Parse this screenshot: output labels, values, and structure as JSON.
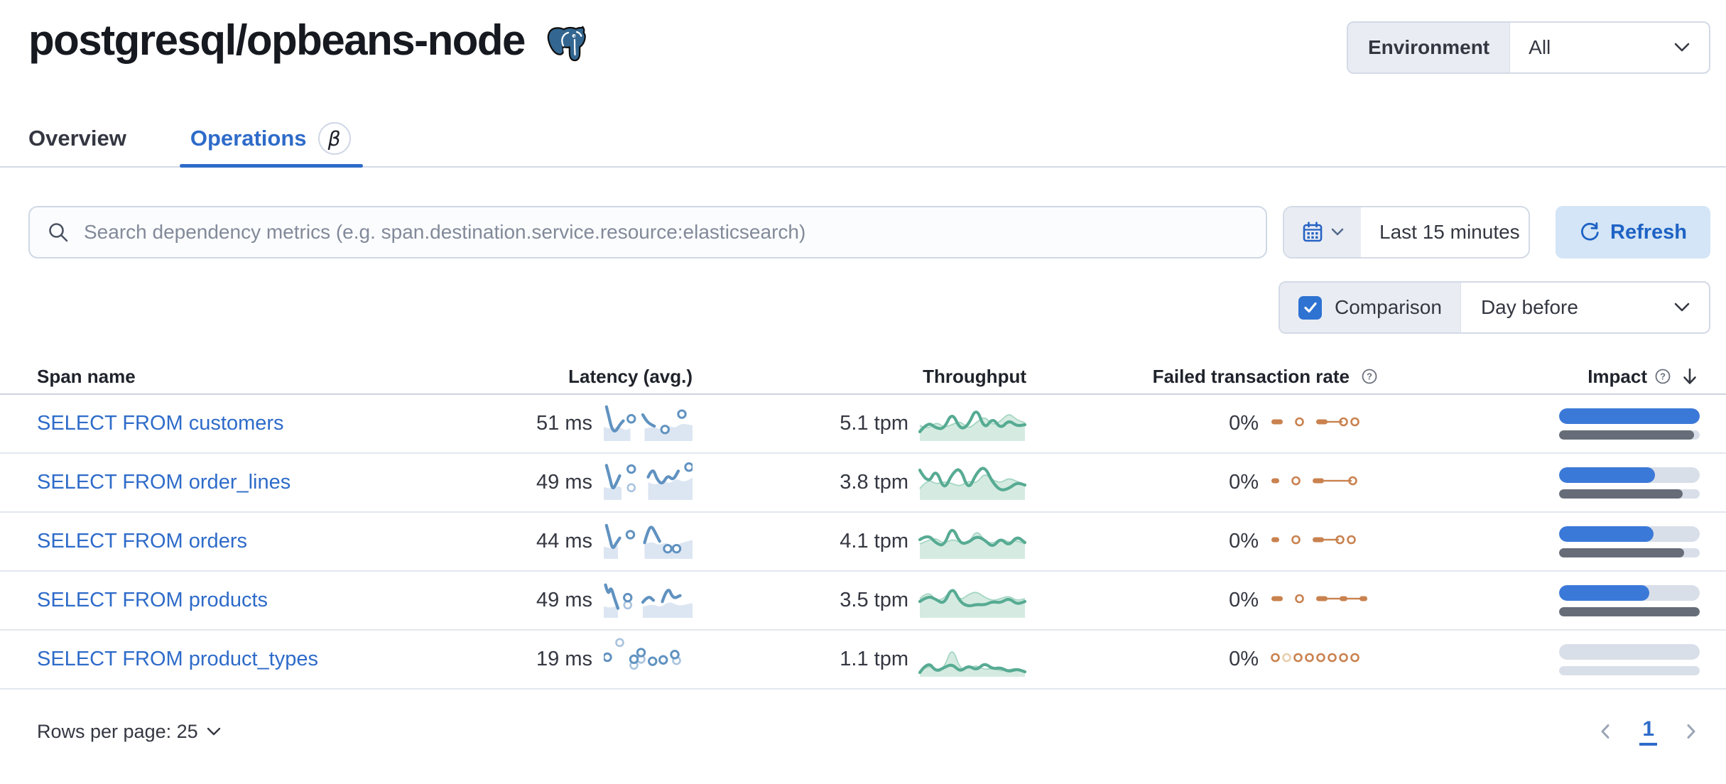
{
  "header": {
    "title": "postgresql/opbeans-node",
    "environment_label": "Environment",
    "environment_value": "All"
  },
  "tabs": [
    {
      "label": "Overview"
    },
    {
      "label": "Operations",
      "badge": "β"
    }
  ],
  "toolbar": {
    "search_placeholder": "Search dependency metrics (e.g. span.destination.service.resource:elasticsearch)",
    "time_range": "Last 15 minutes",
    "refresh_label": "Refresh",
    "comparison_label": "Comparison",
    "comparison_checked": true,
    "comparison_value": "Day before"
  },
  "table": {
    "columns": [
      "Span name",
      "Latency (avg.)",
      "Throughput",
      "Failed transaction rate",
      "Impact"
    ],
    "rows": [
      {
        "name": "SELECT FROM customers",
        "latency": "51 ms",
        "throughput": "5.1 tpm",
        "failed_rate": "0%",
        "impact": {
          "current": 100,
          "previous": 96
        },
        "latency_spark": {
          "areas": [
            [
              [
                0,
                0.66
              ],
              [
                8,
                0.74
              ],
              [
                16,
                0.62
              ],
              [
                24,
                0.78
              ],
              [
                30,
                0.7
              ]
            ],
            [
              [
                46,
                0.72
              ],
              [
                56,
                0.64
              ],
              [
                64,
                0.76
              ],
              [
                72,
                0.62
              ],
              [
                80,
                0.7
              ],
              [
                88,
                0.55
              ],
              [
                100,
                0.62
              ]
            ]
          ],
          "lines": [
            [
              [
                3,
                0.06
              ],
              [
                6,
                0.38
              ],
              [
                9,
                0.72
              ],
              [
                13,
                0.82
              ],
              [
                18,
                0.6
              ],
              [
                22,
                0.48
              ]
            ],
            [
              [
                44,
                0.3
              ],
              [
                47,
                0.44
              ],
              [
                51,
                0.56
              ],
              [
                57,
                0.64
              ]
            ]
          ],
          "dots": [
            [
              31,
              0.42
            ],
            [
              69,
              0.74
            ],
            [
              88,
              0.28
            ]
          ],
          "light_dots": []
        },
        "throughput_spark": {
          "line": [
            0.78,
            0.5,
            0.68,
            0.7,
            0.22,
            0.72,
            0.6,
            0.08,
            0.72,
            0.38,
            0.7,
            0.45,
            0.62,
            0.58
          ],
          "area": [
            0.6,
            0.72,
            0.5,
            0.66,
            0.58,
            0.48,
            0.7,
            0.52,
            0.34,
            0.6,
            0.48,
            0.25,
            0.45,
            0.52
          ]
        },
        "failed_spark": [
          "dash",
          "sp",
          "ring",
          "sp",
          "dash",
          "conn",
          "ring",
          "ring"
        ]
      },
      {
        "name": "SELECT FROM order_lines",
        "latency": "49 ms",
        "throughput": "3.8 tpm",
        "failed_rate": "0%",
        "impact": {
          "current": 68,
          "previous": 88
        },
        "latency_spark": {
          "areas": [
            [
              [
                0,
                0.7
              ],
              [
                8,
                0.76
              ],
              [
                16,
                0.66
              ],
              [
                20,
                0.72
              ]
            ],
            [
              [
                50,
                0.55
              ],
              [
                58,
                0.66
              ],
              [
                66,
                0.5
              ],
              [
                74,
                0.6
              ],
              [
                82,
                0.44
              ],
              [
                90,
                0.56
              ],
              [
                100,
                0.42
              ]
            ]
          ],
          "lines": [
            [
              [
                3,
                0.05
              ],
              [
                7,
                0.45
              ],
              [
                10,
                0.78
              ],
              [
                14,
                0.6
              ],
              [
                18,
                0.36
              ]
            ],
            [
              [
                50,
                0.4
              ],
              [
                55,
                0.1
              ],
              [
                60,
                0.48
              ],
              [
                66,
                0.62
              ],
              [
                72,
                0.34
              ],
              [
                78,
                0.5
              ],
              [
                84,
                0.22
              ]
            ]
          ],
          "dots": [
            [
              31,
              0.16
            ],
            [
              96,
              0.1
            ]
          ],
          "light_dots": [
            [
              31,
              0.72
            ]
          ]
        },
        "throughput_spark": {
          "line": [
            0.2,
            0.62,
            0.15,
            0.78,
            0.3,
            0.12,
            0.78,
            0.28,
            0.08,
            0.55,
            0.78,
            0.72,
            0.55,
            0.62
          ],
          "area": [
            0.72,
            0.45,
            0.6,
            0.52,
            0.58,
            0.66,
            0.5,
            0.58,
            0.28,
            0.48,
            0.56,
            0.42,
            0.52,
            0.6
          ]
        },
        "failed_spark": [
          "dashsm",
          "sp",
          "ring",
          "sp",
          "dash",
          "connlong",
          "ring"
        ]
      },
      {
        "name": "SELECT FROM orders",
        "latency": "44 ms",
        "throughput": "4.1 tpm",
        "failed_rate": "0%",
        "impact": {
          "current": 67,
          "previous": 89
        },
        "latency_spark": {
          "areas": [
            [
              [
                0,
                0.72
              ],
              [
                8,
                0.78
              ],
              [
                16,
                0.68
              ]
            ],
            [
              [
                46,
                0.64
              ],
              [
                54,
                0.56
              ],
              [
                62,
                0.68
              ],
              [
                70,
                0.58
              ],
              [
                78,
                0.72
              ],
              [
                88,
                0.6
              ],
              [
                100,
                0.52
              ]
            ]
          ],
          "lines": [
            [
              [
                3,
                0.08
              ],
              [
                7,
                0.5
              ],
              [
                10,
                0.8
              ],
              [
                14,
                0.62
              ],
              [
                18,
                0.46
              ]
            ],
            [
              [
                46,
                0.6
              ],
              [
                50,
                0.22
              ],
              [
                54,
                0.1
              ],
              [
                58,
                0.3
              ],
              [
                63,
                0.56
              ]
            ]
          ],
          "dots": [
            [
              30,
              0.36
            ],
            [
              72,
              0.78
            ],
            [
              82,
              0.78
            ]
          ],
          "light_dots": []
        },
        "throughput_spark": {
          "line": [
            0.5,
            0.35,
            0.6,
            0.68,
            0.1,
            0.62,
            0.58,
            0.4,
            0.5,
            0.72,
            0.45,
            0.68,
            0.4,
            0.58
          ],
          "area": [
            0.62,
            0.52,
            0.45,
            0.62,
            0.48,
            0.58,
            0.62,
            0.22,
            0.52,
            0.62,
            0.45,
            0.58,
            0.52,
            0.62
          ]
        },
        "failed_spark": [
          "dashsm",
          "sp",
          "ring",
          "sp",
          "dash",
          "conn",
          "ring",
          "ring"
        ]
      },
      {
        "name": "SELECT FROM products",
        "latency": "49 ms",
        "throughput": "3.5 tpm",
        "failed_rate": "0%",
        "impact": {
          "current": 64,
          "previous": 100
        },
        "latency_spark": {
          "areas": [
            [
              [
                0,
                0.74
              ],
              [
                8,
                0.8
              ],
              [
                16,
                0.7
              ]
            ],
            [
              [
                44,
                0.76
              ],
              [
                54,
                0.66
              ],
              [
                64,
                0.78
              ],
              [
                74,
                0.58
              ],
              [
                84,
                0.74
              ],
              [
                100,
                0.64
              ]
            ]
          ],
          "lines": [
            [
              [
                2,
                0.1
              ],
              [
                5,
                0.42
              ],
              [
                8,
                0.14
              ],
              [
                12,
                0.5
              ],
              [
                16,
                0.8
              ]
            ],
            [
              [
                44,
                0.62
              ],
              [
                50,
                0.42
              ],
              [
                56,
                0.56
              ]
            ],
            [
              [
                66,
                0.6
              ],
              [
                72,
                0.12
              ],
              [
                78,
                0.52
              ],
              [
                86,
                0.42
              ]
            ]
          ],
          "dots": [
            [
              27,
              0.48
            ]
          ],
          "light_dots": [
            [
              27,
              0.7
            ]
          ]
        },
        "throughput_spark": {
          "line": [
            0.58,
            0.42,
            0.52,
            0.66,
            0.15,
            0.6,
            0.72,
            0.66,
            0.68,
            0.58,
            0.62,
            0.48,
            0.66,
            0.58
          ],
          "area": [
            0.5,
            0.28,
            0.56,
            0.5,
            0.2,
            0.56,
            0.38,
            0.3,
            0.46,
            0.56,
            0.5,
            0.42,
            0.56,
            0.5
          ]
        },
        "failed_spark": [
          "dash",
          "sp",
          "ring",
          "sp",
          "dash",
          "conn",
          "dashsm",
          "conn",
          "dashsm"
        ]
      },
      {
        "name": "SELECT FROM product_types",
        "latency": "19 ms",
        "throughput": "1.1 tpm",
        "failed_rate": "0%",
        "impact": {
          "current": 0,
          "previous": 0
        },
        "latency_spark": {
          "areas": [],
          "lines": [],
          "dots": [
            [
              4,
              0.5
            ],
            [
              34,
              0.56
            ],
            [
              42,
              0.36
            ],
            [
              55,
              0.62
            ],
            [
              67,
              0.58
            ],
            [
              80,
              0.42
            ]
          ],
          "light_dots": [
            [
              18,
              0.06
            ],
            [
              34,
              0.74
            ],
            [
              42,
              0.56
            ],
            [
              82,
              0.6
            ]
          ]
        },
        "throughput_spark": {
          "line": [
            0.92,
            0.6,
            0.9,
            0.78,
            0.68,
            0.9,
            0.72,
            0.86,
            0.65,
            0.82,
            0.78,
            0.9,
            0.82,
            0.9
          ],
          "area": [
            0.88,
            0.72,
            0.84,
            0.8,
            0.18,
            0.84,
            0.8,
            0.72,
            0.84,
            0.8,
            0.88,
            0.84,
            0.8,
            0.88
          ]
        },
        "failed_spark": [
          "ring",
          "ringlt",
          "ring",
          "ring",
          "ring",
          "ring",
          "ring",
          "ring"
        ]
      }
    ]
  },
  "footer": {
    "rows_per_page_label": "Rows per page: 25",
    "page": "1"
  },
  "colors": {
    "primary": "#2e6bc9",
    "lat_stroke": "#6092C0",
    "lat_fill": "#dce6f2",
    "lat_light": "#a9c3de",
    "tp_stroke": "#57ab93",
    "tp_fill": "#d5ebe1",
    "tp_fill_line": "#a5d6c3",
    "failed": "#c9824f",
    "failed_light": "#e8cfae",
    "impact_current": "#3b79d8",
    "impact_previous": "#666d78",
    "impact_track": "#d9dfe9"
  }
}
